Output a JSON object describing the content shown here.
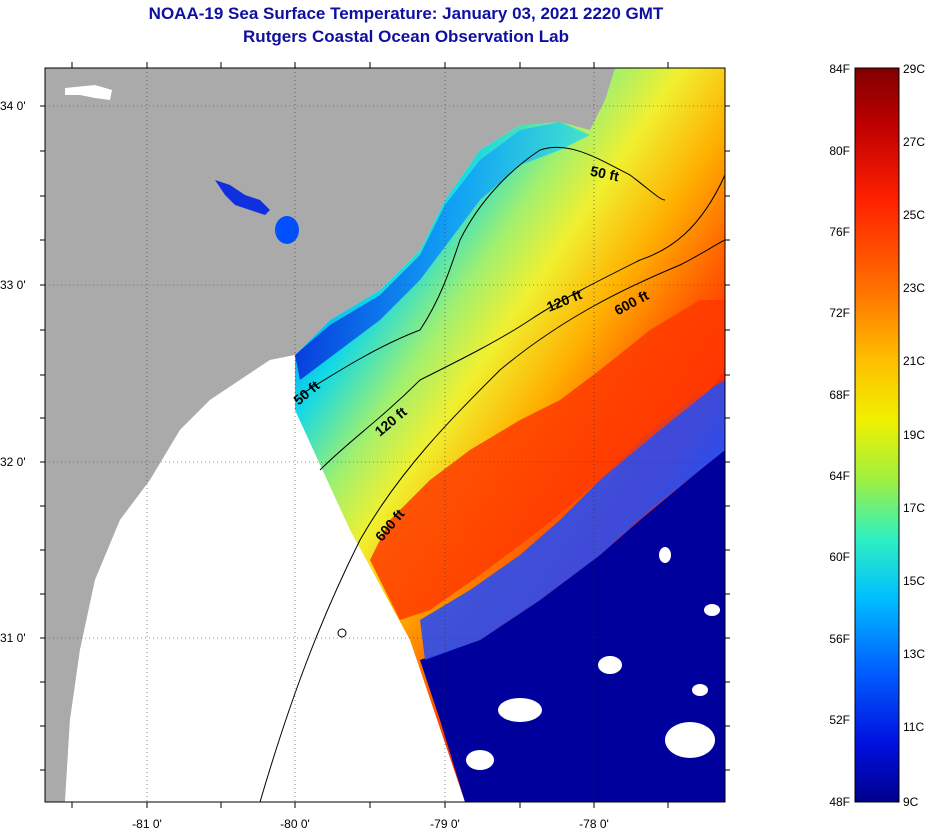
{
  "title": {
    "line1": "NOAA-19 Sea Surface Temperature:  January 03, 2021 2220 GMT",
    "line2": "Rutgers Coastal Ocean Observation Lab"
  },
  "map": {
    "lat_ticks": [
      {
        "value": 34,
        "label": "34 0'"
      },
      {
        "value": 33,
        "label": "33 0'"
      },
      {
        "value": 32,
        "label": "32 0'"
      },
      {
        "value": 31,
        "label": "31 0'"
      }
    ],
    "lon_ticks": [
      {
        "value": -81,
        "label": "-81 0'"
      },
      {
        "value": -80,
        "label": "-80 0'"
      },
      {
        "value": -79,
        "label": "-79 0'"
      },
      {
        "value": -78,
        "label": "-78 0'"
      }
    ],
    "contour_labels": [
      {
        "id": "c50a",
        "text": "50 ft"
      },
      {
        "id": "c50b",
        "text": "50 ft"
      },
      {
        "id": "c120a",
        "text": "120 ft"
      },
      {
        "id": "c120b",
        "text": "120 ft"
      },
      {
        "id": "c600a",
        "text": "600 ft"
      },
      {
        "id": "c600b",
        "text": "600 ft"
      }
    ],
    "colors": {
      "land": "#aaaaaa",
      "no_data": "#ffffff",
      "cold": "#00009c",
      "warm": "#ff3000"
    }
  },
  "colorbar": {
    "fahrenheit": [
      "84F",
      "80F",
      "76F",
      "72F",
      "68F",
      "64F",
      "60F",
      "56F",
      "52F",
      "48F"
    ],
    "celsius": [
      "29C",
      "27C",
      "25C",
      "23C",
      "21C",
      "19C",
      "17C",
      "15C",
      "13C",
      "11C",
      "9C"
    ]
  }
}
